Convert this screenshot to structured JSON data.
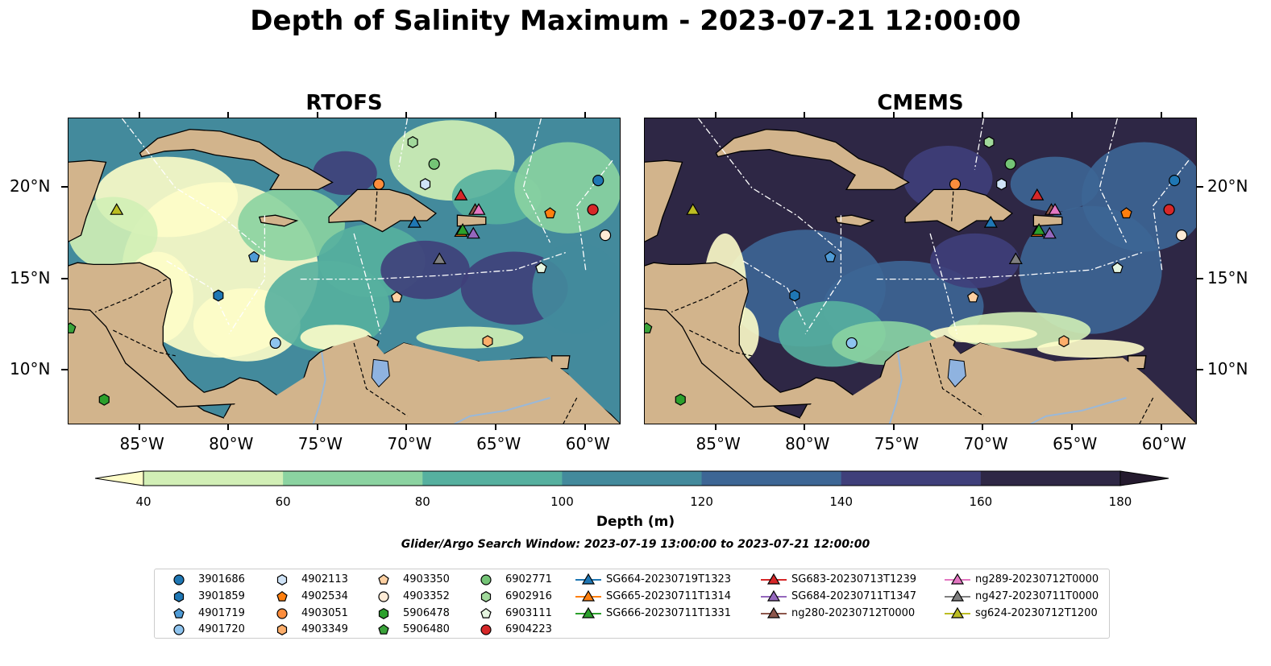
{
  "title": "Depth of Salinity Maximum - 2023-07-21 12:00:00",
  "panels": [
    {
      "title": "RTOFS",
      "model": "rtofs"
    },
    {
      "title": "CMEMS",
      "model": "cmems"
    }
  ],
  "map_extent": {
    "lon_min": -89,
    "lon_max": -58,
    "lat_min": 7,
    "lat_max": 23.8
  },
  "lon_ticks": [
    {
      "value": -85,
      "label": "85°W"
    },
    {
      "value": -80,
      "label": "80°W"
    },
    {
      "value": -75,
      "label": "75°W"
    },
    {
      "value": -70,
      "label": "70°W"
    },
    {
      "value": -65,
      "label": "65°W"
    },
    {
      "value": -60,
      "label": "60°W"
    }
  ],
  "lat_ticks": [
    {
      "value": 20,
      "label": "20°N"
    },
    {
      "value": 15,
      "label": "15°N"
    },
    {
      "value": 10,
      "label": "10°N"
    }
  ],
  "colorbar": {
    "label": "Depth (m)",
    "ticks": [
      "40",
      "60",
      "80",
      "100",
      "120",
      "140",
      "160",
      "180"
    ],
    "colors": [
      "#fefdc9",
      "#d2efb6",
      "#8bd3a1",
      "#56b09f",
      "#438a9c",
      "#3d6695",
      "#3f3f7a",
      "#2e2745",
      "#241a2e"
    ],
    "extend": "both"
  },
  "search_window": "Glider/Argo Search Window: 2023-07-19 13:00:00 to 2023-07-21 12:00:00",
  "colors": {
    "land": "#d2b48c",
    "lake": "#8fb3e0",
    "river": "#9ab8d8"
  },
  "observations": [
    {
      "id": "3901686",
      "marker": "circle",
      "color": "#1f77b4",
      "lon": -59.3,
      "lat": 20.4
    },
    {
      "id": "3901859",
      "marker": "hexagon",
      "color": "#1f77b4",
      "lon": -80.6,
      "lat": 14.1
    },
    {
      "id": "4901719",
      "marker": "pentagon",
      "color": "#4f9bd6",
      "lon": -78.6,
      "lat": 16.2
    },
    {
      "id": "4901720",
      "marker": "circle",
      "color": "#8ec4ef",
      "lon": -77.4,
      "lat": 11.5
    },
    {
      "id": "4902113",
      "marker": "hexagon",
      "color": "#cfe3f7",
      "lon": -69.0,
      "lat": 20.2
    },
    {
      "id": "4902534",
      "marker": "pentagon",
      "color": "#ff7f0e",
      "lon": -62.0,
      "lat": 18.6
    },
    {
      "id": "4903051",
      "marker": "circle",
      "color": "#fd8d3c",
      "lon": -71.6,
      "lat": 20.2
    },
    {
      "id": "4903349",
      "marker": "hexagon",
      "color": "#fdae6b",
      "lon": -65.5,
      "lat": 11.6
    },
    {
      "id": "4903350",
      "marker": "pentagon",
      "color": "#fdd0a2",
      "lon": -70.6,
      "lat": 14.0
    },
    {
      "id": "4903352",
      "marker": "circle",
      "color": "#feebd6",
      "lon": -58.9,
      "lat": 17.4
    },
    {
      "id": "5906478",
      "marker": "hexagon",
      "color": "#2ca02c",
      "lon": -87.0,
      "lat": 8.4
    },
    {
      "id": "5906480",
      "marker": "pentagon",
      "color": "#3aa33a",
      "lon": -88.9,
      "lat": 12.3
    },
    {
      "id": "6902771",
      "marker": "circle",
      "color": "#74c476",
      "lon": -68.5,
      "lat": 21.3
    },
    {
      "id": "6902916",
      "marker": "hexagon",
      "color": "#a1d99b",
      "lon": -69.7,
      "lat": 22.5
    },
    {
      "id": "6903111",
      "marker": "pentagon",
      "color": "#e5f5e0",
      "lon": -62.5,
      "lat": 15.6
    },
    {
      "id": "6904223",
      "marker": "circle",
      "color": "#d62728",
      "lon": -59.6,
      "lat": 18.8
    }
  ],
  "gliders": [
    {
      "id": "SG664-20230719T1323",
      "color": "#1f77b4",
      "lon": -69.6,
      "lat": 18.1
    },
    {
      "id": "SG665-20230711T1314",
      "color": "#ff7f0e",
      "lon": -67.0,
      "lat": 17.6
    },
    {
      "id": "SG666-20230711T1331",
      "color": "#2ca02c",
      "lon": -66.9,
      "lat": 17.7
    },
    {
      "id": "SG683-20230713T1239",
      "color": "#d62728",
      "lon": -67.0,
      "lat": 19.6
    },
    {
      "id": "SG684-20230711T1347",
      "color": "#9467bd",
      "lon": -66.3,
      "lat": 17.5
    },
    {
      "id": "ng280-20230712T0000",
      "color": "#8c564b",
      "lon": -66.2,
      "lat": 18.8
    },
    {
      "id": "ng289-20230712T0000",
      "color": "#e377c2",
      "lon": -66.0,
      "lat": 18.8
    },
    {
      "id": "ng427-20230711T0000",
      "color": "#7f7f7f",
      "lon": -68.2,
      "lat": 16.1
    },
    {
      "id": "sg624-20230712T1200",
      "color": "#bcbd22",
      "lon": -86.3,
      "lat": 18.8
    }
  ]
}
